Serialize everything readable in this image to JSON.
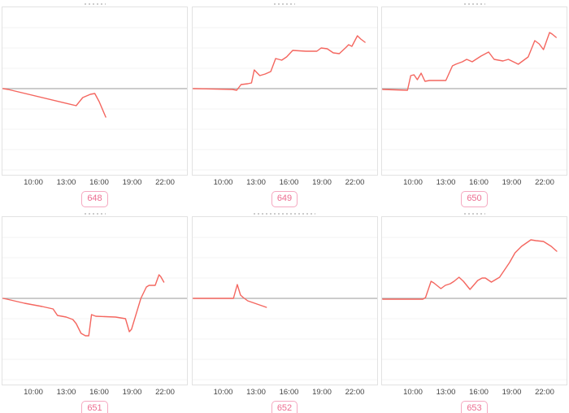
{
  "style": {
    "line_color": "#f4665f",
    "baseline_color": "#aeaeae",
    "grid_color": "#f3f3f3",
    "panel_border": "#e2e2e2",
    "badge_border": "#f5a9c1",
    "badge_text_color": "#ec6d90",
    "tick_text_color": "#444444"
  },
  "x_axis": {
    "tick_labels": [
      "10:00",
      "13:00",
      "16:00",
      "19:00",
      "22:00"
    ],
    "tick_hours": [
      10,
      13,
      16,
      19,
      22
    ]
  },
  "chart_data": [
    {
      "type": "line",
      "badge": "648",
      "x_tick_labels": [
        "10:00",
        "13:00",
        "16:00",
        "19:00",
        "22:00"
      ],
      "x_range_hours": [
        7.1,
        24.0
      ],
      "baseline_value": 0,
      "grid": "horizontal-only",
      "y_axis_labels": "none (unlabeled relative scale, zero line shown)",
      "points": [
        [
          7.1,
          0
        ],
        [
          7.7,
          -1
        ],
        [
          13.9,
          -21
        ],
        [
          14.5,
          -11
        ],
        [
          15.2,
          -7
        ],
        [
          15.6,
          -6
        ],
        [
          16.0,
          -16
        ],
        [
          16.6,
          -35
        ]
      ]
    },
    {
      "type": "line",
      "badge": "649",
      "x_tick_labels": [
        "10:00",
        "13:00",
        "16:00",
        "19:00",
        "22:00"
      ],
      "x_range_hours": [
        7.1,
        24.0
      ],
      "baseline_value": 0,
      "grid": "horizontal-only",
      "y_axis_labels": "none (unlabeled relative scale, zero line shown)",
      "points": [
        [
          7.1,
          0
        ],
        [
          10.8,
          -1
        ],
        [
          11.2,
          -2
        ],
        [
          11.6,
          5
        ],
        [
          12.2,
          6
        ],
        [
          12.55,
          7
        ],
        [
          12.8,
          23
        ],
        [
          13.3,
          16
        ],
        [
          13.8,
          18
        ],
        [
          14.3,
          21
        ],
        [
          14.75,
          37
        ],
        [
          15.3,
          35
        ],
        [
          15.75,
          39
        ],
        [
          16.3,
          47
        ],
        [
          17.5,
          46
        ],
        [
          18.5,
          46
        ],
        [
          18.9,
          50
        ],
        [
          19.45,
          49
        ],
        [
          20.0,
          44
        ],
        [
          20.55,
          43
        ],
        [
          21.1,
          50
        ],
        [
          21.4,
          54
        ],
        [
          21.7,
          52
        ],
        [
          22.2,
          65
        ],
        [
          22.5,
          61
        ],
        [
          22.9,
          57
        ]
      ]
    },
    {
      "type": "line",
      "badge": "650",
      "x_tick_labels": [
        "10:00",
        "13:00",
        "16:00",
        "19:00",
        "22:00"
      ],
      "x_range_hours": [
        7.1,
        24.0
      ],
      "baseline_value": 0,
      "grid": "horizontal-only",
      "y_axis_labels": "none (unlabeled relative scale, zero line shown)",
      "points": [
        [
          7.1,
          -1
        ],
        [
          9.5,
          -2
        ],
        [
          9.8,
          16
        ],
        [
          10.1,
          17
        ],
        [
          10.4,
          11
        ],
        [
          10.75,
          19
        ],
        [
          11.1,
          9
        ],
        [
          11.5,
          10
        ],
        [
          13.0,
          10
        ],
        [
          13.6,
          28
        ],
        [
          13.9,
          30
        ],
        [
          14.5,
          33
        ],
        [
          14.9,
          36
        ],
        [
          15.4,
          33
        ],
        [
          16.2,
          40
        ],
        [
          16.9,
          45
        ],
        [
          17.4,
          36
        ],
        [
          18.2,
          34
        ],
        [
          18.7,
          36
        ],
        [
          19.3,
          32
        ],
        [
          19.6,
          30
        ],
        [
          20.5,
          39
        ],
        [
          21.1,
          59
        ],
        [
          21.5,
          55
        ],
        [
          21.9,
          48
        ],
        [
          22.45,
          69
        ],
        [
          22.7,
          67
        ],
        [
          23.05,
          63
        ]
      ]
    },
    {
      "type": "line",
      "badge": "651",
      "x_tick_labels": [
        "10:00",
        "13:00",
        "16:00",
        "19:00",
        "22:00"
      ],
      "x_range_hours": [
        7.1,
        24.0
      ],
      "baseline_value": 0,
      "grid": "horizontal-only",
      "y_axis_labels": "none (unlabeled relative scale, zero line shown)",
      "points": [
        [
          7.1,
          0
        ],
        [
          7.6,
          -1
        ],
        [
          9.2,
          -6
        ],
        [
          10.8,
          -10
        ],
        [
          11.8,
          -13
        ],
        [
          12.2,
          -21
        ],
        [
          13.0,
          -23
        ],
        [
          13.6,
          -26
        ],
        [
          13.9,
          -31
        ],
        [
          14.35,
          -43
        ],
        [
          14.75,
          -46
        ],
        [
          15.05,
          -46
        ],
        [
          15.3,
          -20
        ],
        [
          15.7,
          -22
        ],
        [
          17.5,
          -23
        ],
        [
          18.4,
          -25
        ],
        [
          18.75,
          -41
        ],
        [
          18.95,
          -38
        ],
        [
          19.8,
          0
        ],
        [
          20.3,
          14
        ],
        [
          20.55,
          16
        ],
        [
          21.1,
          16
        ],
        [
          21.45,
          29
        ],
        [
          21.6,
          27
        ],
        [
          21.9,
          20
        ]
      ]
    },
    {
      "type": "line",
      "badge": "652",
      "x_tick_labels": [
        "10:00",
        "13:00",
        "16:00",
        "19:00",
        "22:00"
      ],
      "x_range_hours": [
        7.1,
        24.0
      ],
      "baseline_value": 0,
      "grid": "horizontal-only",
      "y_axis_labels": "none (unlabeled relative scale, zero line shown)",
      "points": [
        [
          7.1,
          0
        ],
        [
          10.9,
          0
        ],
        [
          11.25,
          17
        ],
        [
          11.55,
          4
        ],
        [
          11.8,
          1
        ],
        [
          12.2,
          -3
        ],
        [
          13.9,
          -11
        ]
      ]
    },
    {
      "type": "line",
      "badge": "653",
      "x_tick_labels": [
        "10:00",
        "13:00",
        "16:00",
        "19:00",
        "22:00"
      ],
      "x_range_hours": [
        7.1,
        24.0
      ],
      "baseline_value": 0,
      "grid": "horizontal-only",
      "y_axis_labels": "none (unlabeled relative scale, zero line shown)",
      "points": [
        [
          7.1,
          -1
        ],
        [
          10.9,
          -1
        ],
        [
          11.15,
          1
        ],
        [
          11.65,
          21
        ],
        [
          11.9,
          19
        ],
        [
          12.55,
          12
        ],
        [
          12.95,
          16
        ],
        [
          13.4,
          18
        ],
        [
          13.75,
          21
        ],
        [
          14.2,
          26
        ],
        [
          14.6,
          21
        ],
        [
          15.2,
          11
        ],
        [
          15.9,
          22
        ],
        [
          16.3,
          25
        ],
        [
          16.6,
          25
        ],
        [
          17.15,
          20
        ],
        [
          17.9,
          26
        ],
        [
          18.8,
          44
        ],
        [
          19.3,
          56
        ],
        [
          19.9,
          64
        ],
        [
          20.75,
          72
        ],
        [
          21.2,
          71
        ],
        [
          21.9,
          70
        ],
        [
          22.6,
          64
        ],
        [
          23.1,
          58
        ]
      ]
    }
  ]
}
